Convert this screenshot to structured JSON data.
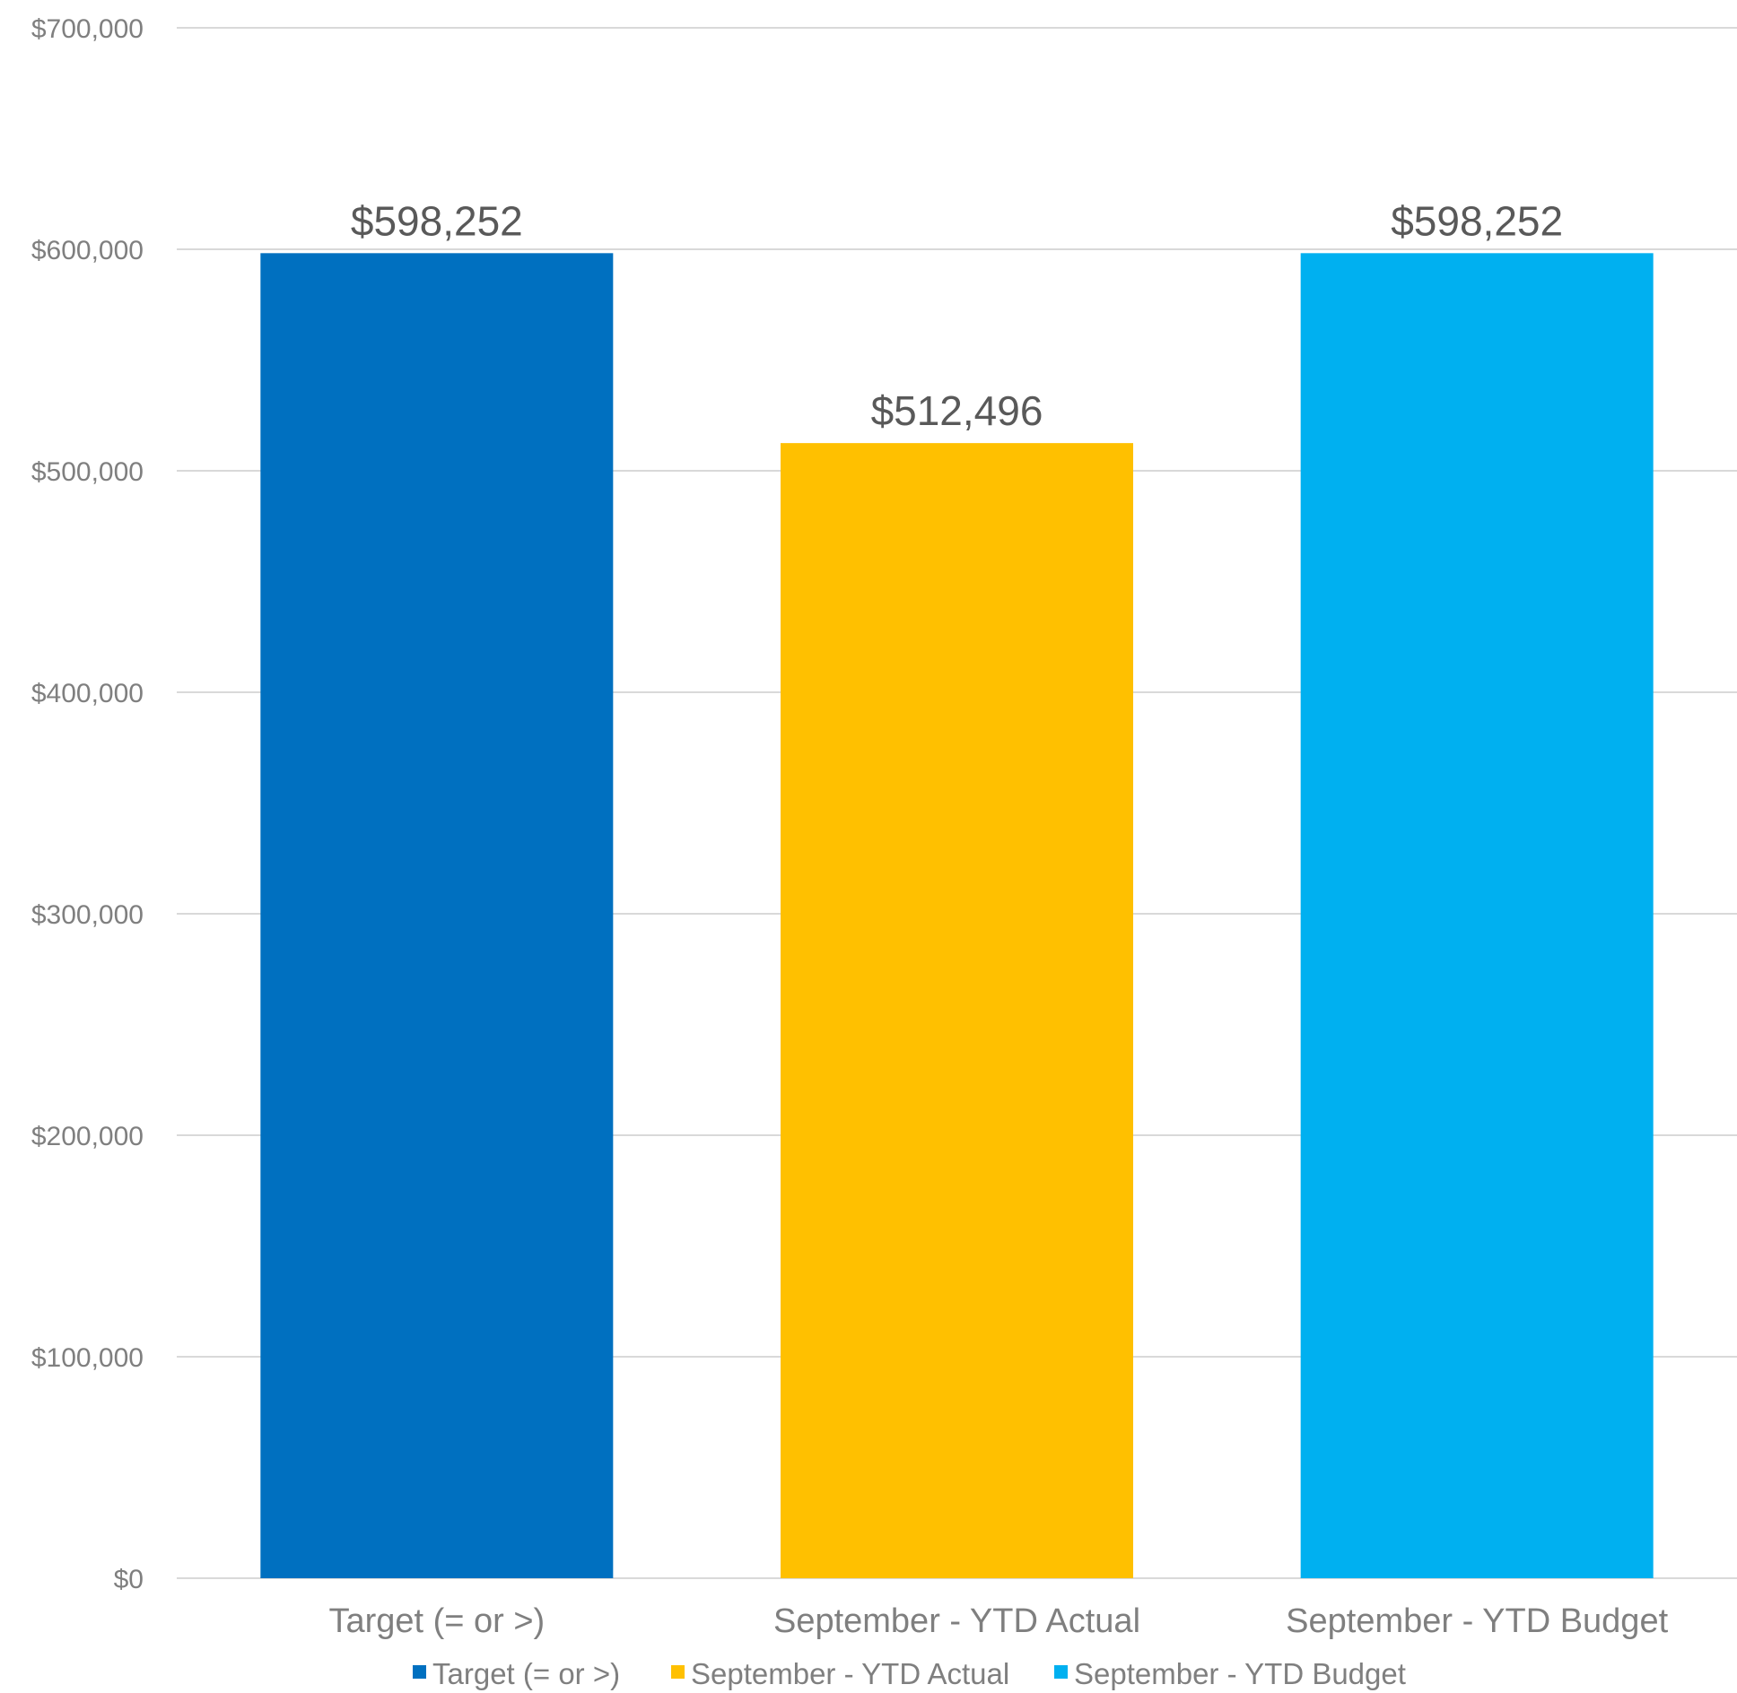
{
  "chart_data": {
    "type": "bar",
    "title": "",
    "xlabel": "",
    "ylabel": "",
    "categories": [
      "Target (= or >)",
      "September - YTD Actual",
      "September - YTD Budget"
    ],
    "values": [
      598252,
      512496,
      598252
    ],
    "data_labels": [
      "$598,252",
      "$512,496",
      "$598,252"
    ],
    "colors": [
      "#0070c0",
      "#ffc000",
      "#00b0f0"
    ],
    "ylim": [
      0,
      700000
    ],
    "yticks": [
      0,
      100000,
      200000,
      300000,
      400000,
      500000,
      600000,
      700000
    ],
    "ytick_labels": [
      "$0",
      "$100,000",
      "$200,000",
      "$300,000",
      "$400,000",
      "$500,000",
      "$600,000",
      "$700,000"
    ],
    "grid": true,
    "legend": {
      "position": "bottom",
      "entries": [
        {
          "label": "Target (= or >)",
          "color": "#0070c0"
        },
        {
          "label": "September - YTD Actual",
          "color": "#ffc000"
        },
        {
          "label": "September - YTD Budget",
          "color": "#00b0f0"
        }
      ]
    }
  }
}
